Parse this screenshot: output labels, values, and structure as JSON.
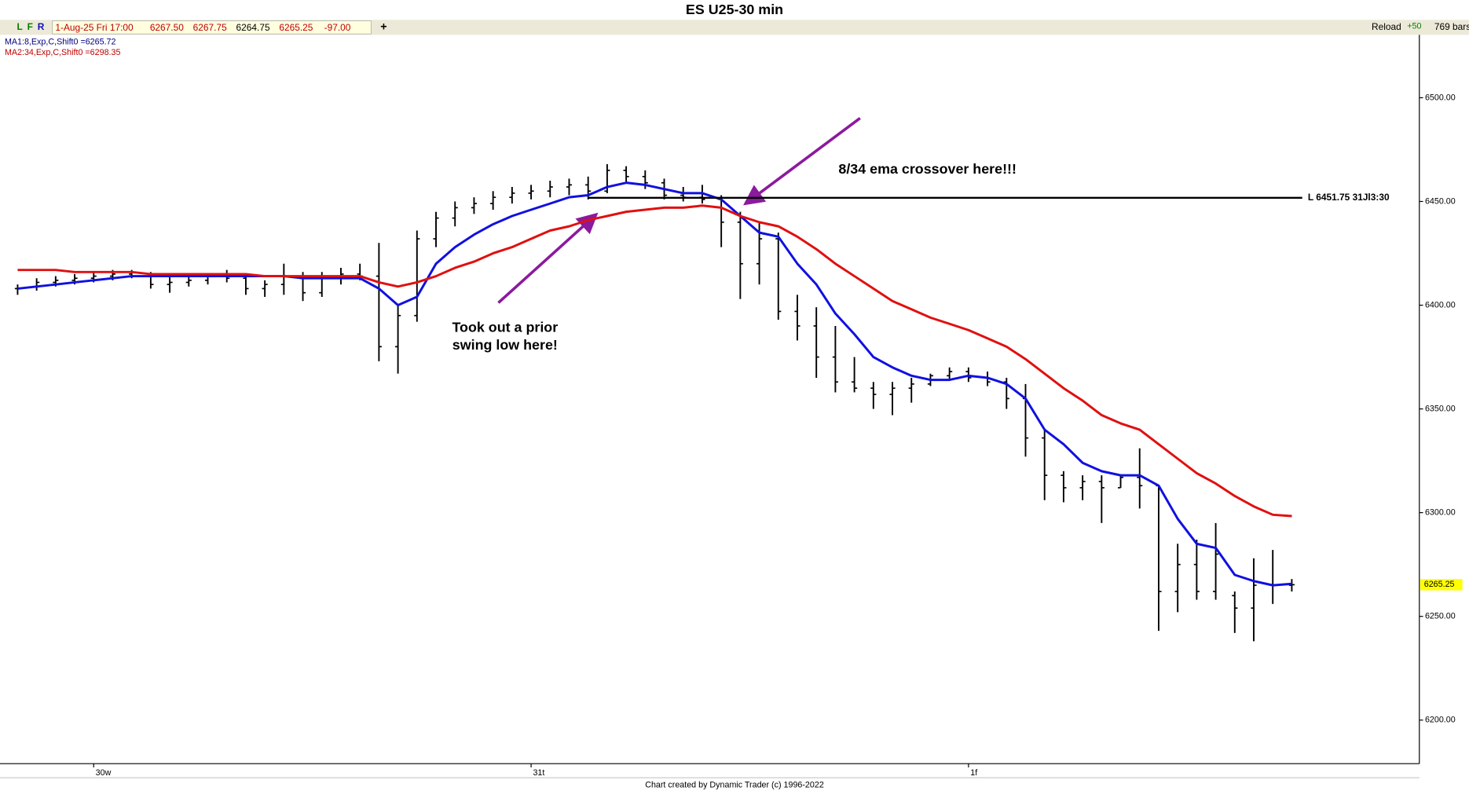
{
  "chart_data": {
    "type": "ohlc",
    "title": "ES U25-30 min",
    "toolbar": {
      "buttons": [
        "L",
        "F",
        "R"
      ],
      "date": "1-Aug-25 Fri 17:00",
      "open": "6267.50",
      "high": "6267.75",
      "low": "6264.75",
      "close": "6265.25",
      "change": "-97.00",
      "add": "+",
      "reload": "Reload",
      "step": "+50",
      "bars": "769 bars"
    },
    "footer": "Chart created by Dynamic Trader  (c) 1996-2022",
    "categories": [
      null,
      null,
      null,
      null,
      "30w",
      null,
      null,
      null,
      null,
      null,
      null,
      null,
      null,
      null,
      null,
      null,
      null,
      null,
      null,
      null,
      null,
      null,
      null,
      null,
      null,
      null,
      null,
      "31t",
      null,
      null,
      null,
      null,
      null,
      null,
      null,
      null,
      null,
      null,
      null,
      null,
      null,
      null,
      null,
      null,
      null,
      null,
      null,
      null,
      null,
      null,
      "1f",
      null,
      null,
      null,
      null,
      null,
      null,
      null,
      null,
      null,
      null,
      null,
      null,
      null,
      null,
      null,
      null,
      null
    ],
    "open": [
      6408,
      6409,
      6411,
      6412,
      6413,
      6414,
      6415,
      6414,
      6410,
      6411,
      6412,
      6414,
      6413,
      6408,
      6410,
      6414,
      6406,
      6413,
      6415,
      6414,
      6380,
      6395,
      6432,
      6442,
      6447,
      6449,
      6452,
      6454,
      6455,
      6457,
      6458,
      6455,
      6465,
      6462,
      6459,
      6453,
      6452,
      6451,
      6440,
      6420,
      6432,
      6397,
      6390,
      6375,
      6363,
      6360,
      6357,
      6360,
      6362,
      6366,
      6368,
      6365,
      6363,
      6355,
      6336,
      6318,
      6312,
      6315,
      6312,
      6317,
      6313,
      6262,
      6275,
      6262,
      6260,
      6254,
      6265,
      6265
    ],
    "high": [
      6410,
      6413,
      6414,
      6415,
      6416,
      6417,
      6417,
      6416,
      6414,
      6414,
      6415,
      6417,
      6415,
      6412,
      6420,
      6416,
      6416,
      6418,
      6420,
      6430,
      6400,
      6436,
      6445,
      6450,
      6452,
      6455,
      6457,
      6458,
      6460,
      6461,
      6462,
      6468,
      6467,
      6465,
      6461,
      6457,
      6458,
      6453,
      6445,
      6440,
      6435,
      6405,
      6399,
      6390,
      6375,
      6363,
      6363,
      6365,
      6367,
      6370,
      6370,
      6368,
      6365,
      6362,
      6340,
      6320,
      6318,
      6318,
      6318,
      6331,
      6313,
      6285,
      6287,
      6295,
      6262,
      6278,
      6282,
      6268
    ],
    "low": [
      6405,
      6407,
      6409,
      6410,
      6411,
      6412,
      6413,
      6408,
      6406,
      6409,
      6410,
      6411,
      6405,
      6404,
      6405,
      6402,
      6404,
      6410,
      6412,
      6373,
      6367,
      6392,
      6428,
      6438,
      6444,
      6446,
      6449,
      6451,
      6452,
      6453,
      6451,
      6454,
      6459,
      6456,
      6451,
      6450,
      6449,
      6428,
      6403,
      6410,
      6393,
      6383,
      6365,
      6358,
      6358,
      6350,
      6347,
      6353,
      6361,
      6364,
      6363,
      6361,
      6350,
      6327,
      6306,
      6305,
      6306,
      6295,
      6312,
      6302,
      6243,
      6252,
      6258,
      6258,
      6242,
      6238,
      6256,
      6262
    ],
    "close": [
      6408,
      6411,
      6412,
      6413,
      6414,
      6415,
      6414,
      6410,
      6411,
      6412,
      6414,
      6413,
      6408,
      6410,
      6414,
      6406,
      6413,
      6415,
      6414,
      6380,
      6395,
      6432,
      6442,
      6447,
      6449,
      6452,
      6454,
      6455,
      6457,
      6458,
      6455,
      6465,
      6462,
      6459,
      6453,
      6452,
      6451,
      6440,
      6420,
      6432,
      6397,
      6390,
      6375,
      6363,
      6360,
      6357,
      6360,
      6362,
      6366,
      6368,
      6365,
      6363,
      6355,
      6336,
      6318,
      6312,
      6315,
      6312,
      6317,
      6313,
      6262,
      6275,
      6262,
      6280,
      6254,
      6265,
      6265,
      6265.25
    ],
    "bar_color": "#000000",
    "series": [
      {
        "name": "MA1:8,Exp,C,Shift0 =6265.72",
        "color": "#1010e0",
        "values": [
          6408,
          6409,
          6410,
          6411,
          6412,
          6413,
          6414,
          6414,
          6414,
          6414,
          6414,
          6414,
          6414,
          6414,
          6414,
          6413,
          6413,
          6413,
          6413,
          6408,
          6400,
          6404,
          6420,
          6428,
          6434,
          6439,
          6443,
          6446,
          6449,
          6452,
          6453,
          6457,
          6459,
          6458,
          6456,
          6454,
          6454,
          6451,
          6443,
          6435,
          6433,
          6420,
          6410,
          6396,
          6386,
          6375,
          6370,
          6366,
          6364,
          6364,
          6366,
          6365,
          6362,
          6355,
          6340,
          6333,
          6324,
          6320,
          6318,
          6318,
          6313,
          6297,
          6285,
          6283,
          6270,
          6267,
          6265,
          6265.72
        ]
      },
      {
        "name": "MA2:34,Exp,C,Shift0 =6298.35",
        "color": "#e01010",
        "values": [
          6417,
          6417,
          6417,
          6416,
          6416,
          6416,
          6416,
          6415,
          6415,
          6415,
          6415,
          6415,
          6415,
          6414,
          6414,
          6414,
          6414,
          6414,
          6414,
          6411,
          6409,
          6411,
          6414,
          6418,
          6421,
          6425,
          6428,
          6432,
          6436,
          6438,
          6441,
          6443,
          6445,
          6446,
          6447,
          6447,
          6448,
          6447,
          6443,
          6440,
          6438,
          6433,
          6427,
          6420,
          6414,
          6408,
          6402,
          6398,
          6394,
          6391,
          6388,
          6384,
          6380,
          6374,
          6367,
          6360,
          6354,
          6347,
          6343,
          6340,
          6333,
          6326,
          6319,
          6314,
          6308,
          6303,
          6299,
          6298.35
        ]
      }
    ],
    "level": {
      "value": 6451.75,
      "from": 30,
      "label": "L 6451.75 31Jl3:30",
      "color": "#000000"
    },
    "last_price": {
      "value": 6265.25,
      "label": "6265.25",
      "color": "#ffff00"
    },
    "annotations": [
      {
        "lines": [
          "Took out a prior",
          "swing low here!"
        ]
      },
      {
        "lines": [
          "8/34 ema crossover here!!!"
        ]
      }
    ],
    "ylim": [
      6179,
      6538
    ],
    "yticks": [
      {
        "value": 6200,
        "label": "6200.00"
      },
      {
        "value": 6250,
        "label": "6250.00"
      },
      {
        "value": 6300,
        "label": "6300.00"
      },
      {
        "value": 6350,
        "label": "6350.00"
      },
      {
        "value": 6400,
        "label": "6400.00"
      },
      {
        "value": 6450,
        "label": "6450.00"
      },
      {
        "value": 6500,
        "label": "6500.00"
      }
    ]
  }
}
